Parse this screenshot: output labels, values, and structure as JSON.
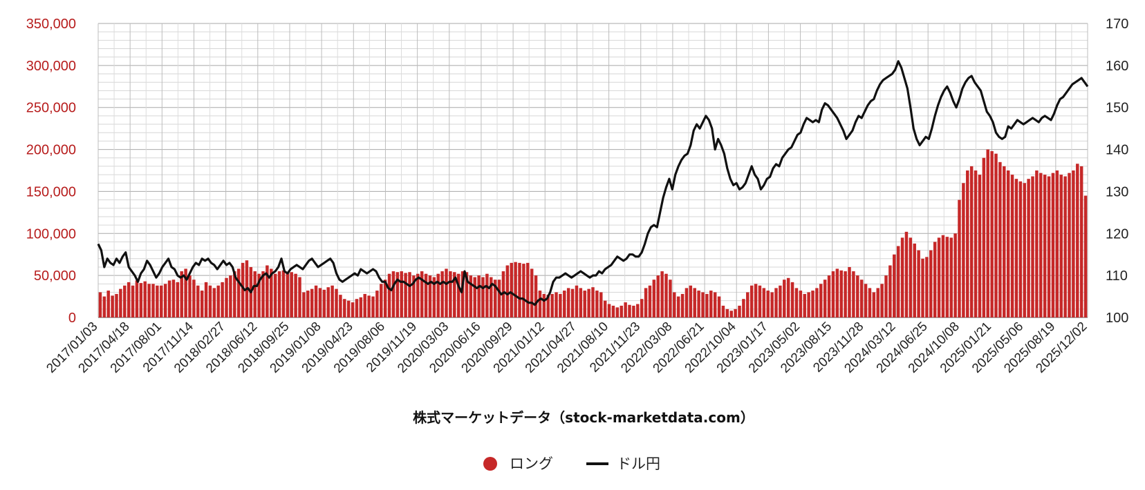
{
  "chart_data": {
    "type": "bar+line",
    "xlabel": "株式マーケットデータ（stock-marketdata.com）",
    "tick_labels": [
      "2017/01/03",
      "2017/04/18",
      "2017/08/01",
      "2017/11/14",
      "2018/02/27",
      "2018/06/12",
      "2018/09/25",
      "2019/01/08",
      "2019/04/23",
      "2019/08/06",
      "2019/11/19",
      "2020/03/03",
      "2020/06/16",
      "2020/09/29",
      "2021/01/12",
      "2021/04/27",
      "2021/08/10",
      "2021/11/23",
      "2022/03/08",
      "2022/06/21",
      "2022/10/04",
      "2023/01/17",
      "2023/05/02",
      "2023/08/15",
      "2023/11/28",
      "2024/03/12",
      "2024/06/25",
      "2024/10/08",
      "2025/01/21",
      "2025/05/06",
      "2025/08/19",
      "2025/12/02"
    ],
    "left_axis": {
      "min": 0,
      "max": 350000,
      "ticks": [
        "0",
        "50,000",
        "100,000",
        "150,000",
        "200,000",
        "250,000",
        "300,000",
        "350,000"
      ],
      "color": "#b71c1c"
    },
    "right_axis": {
      "min": 100,
      "max": 170,
      "ticks": [
        "100",
        "110",
        "120",
        "130",
        "140",
        "150",
        "160",
        "170"
      ],
      "color": "#222222"
    },
    "grid": true,
    "legend_position": "bottom-center",
    "series": [
      {
        "name": "ロング",
        "kind": "bar",
        "axis": "left",
        "color": "#c62828",
        "values": [
          30000,
          25000,
          32000,
          26000,
          28000,
          34000,
          38000,
          42000,
          38000,
          44000,
          41000,
          43000,
          40000,
          40000,
          38000,
          38000,
          40000,
          44000,
          45000,
          42000,
          55000,
          58000,
          50000,
          45000,
          38000,
          32000,
          42000,
          38000,
          35000,
          38000,
          42000,
          47000,
          50000,
          55000,
          58000,
          65000,
          68000,
          60000,
          55000,
          52000,
          55000,
          62000,
          58000,
          52000,
          55000,
          56000,
          53000,
          54000,
          52000,
          48000,
          30000,
          32000,
          34000,
          38000,
          35000,
          33000,
          36000,
          38000,
          34000,
          27000,
          22000,
          20000,
          18000,
          22000,
          24000,
          28000,
          26000,
          25000,
          32000,
          40000,
          45000,
          52000,
          55000,
          54000,
          55000,
          53000,
          54000,
          50000,
          52000,
          55000,
          52000,
          50000,
          48000,
          52000,
          55000,
          58000,
          55000,
          54000,
          52000,
          55000,
          54000,
          50000,
          48000,
          50000,
          48000,
          52000,
          48000,
          45000,
          45000,
          55000,
          62000,
          65000,
          66000,
          65000,
          64000,
          65000,
          58000,
          50000,
          32000,
          28000,
          27000,
          28000,
          30000,
          28000,
          32000,
          35000,
          34000,
          38000,
          35000,
          32000,
          34000,
          36000,
          32000,
          30000,
          20000,
          16000,
          14000,
          12000,
          14000,
          18000,
          15000,
          14000,
          16000,
          22000,
          35000,
          38000,
          45000,
          50000,
          55000,
          52000,
          45000,
          30000,
          25000,
          28000,
          35000,
          38000,
          35000,
          32000,
          30000,
          28000,
          32000,
          30000,
          25000,
          14000,
          10000,
          8000,
          10000,
          14000,
          22000,
          30000,
          38000,
          40000,
          38000,
          35000,
          32000,
          30000,
          35000,
          38000,
          45000,
          47000,
          42000,
          35000,
          32000,
          28000,
          30000,
          32000,
          35000,
          40000,
          45000,
          50000,
          55000,
          58000,
          56000,
          55000,
          60000,
          55000,
          50000,
          45000,
          40000,
          35000,
          30000,
          35000,
          40000,
          50000,
          62000,
          75000,
          85000,
          95000,
          102000,
          95000,
          88000,
          80000,
          70000,
          72000,
          80000,
          90000,
          95000,
          98000,
          96000,
          95000,
          100000,
          140000,
          160000,
          175000,
          180000,
          175000,
          170000,
          190000,
          200000,
          198000,
          195000,
          185000,
          180000,
          175000,
          170000,
          165000,
          162000,
          160000,
          165000,
          168000,
          175000,
          172000,
          170000,
          168000,
          172000,
          175000,
          170000,
          168000,
          172000,
          175000,
          183000,
          180000,
          145000
        ]
      },
      {
        "name": "ドル円",
        "kind": "line",
        "axis": "right",
        "color": "#111111",
        "values": [
          117.5,
          116.0,
          112.0,
          114.0,
          113.0,
          112.5,
          114.0,
          113.0,
          114.5,
          115.5,
          112.0,
          111.0,
          110.0,
          108.5,
          110.5,
          111.5,
          113.5,
          112.5,
          111.0,
          109.5,
          110.5,
          112.0,
          113.0,
          114.0,
          112.0,
          111.5,
          110.0,
          109.5,
          110.0,
          109.0,
          110.5,
          112.0,
          113.0,
          112.5,
          114.0,
          113.5,
          114.0,
          113.0,
          112.5,
          111.5,
          112.5,
          113.5,
          112.5,
          113.0,
          112.0,
          109.5,
          108.5,
          107.5,
          106.5,
          107.0,
          106.0,
          107.5,
          107.5,
          109.0,
          110.0,
          110.5,
          109.5,
          110.5,
          111.0,
          112.0,
          114.0,
          111.0,
          110.5,
          111.5,
          112.0,
          112.5,
          112.0,
          111.5,
          112.5,
          113.5,
          114.0,
          113.0,
          112.0,
          112.5,
          113.0,
          113.5,
          114.0,
          113.0,
          110.5,
          109.0,
          108.5,
          109.0,
          109.5,
          110.0,
          110.5,
          110.0,
          111.5,
          111.0,
          110.5,
          111.0,
          111.5,
          111.0,
          109.5,
          108.5,
          108.5,
          107.0,
          106.5,
          108.0,
          109.0,
          108.5,
          108.5,
          108.0,
          107.5,
          108.0,
          109.0,
          109.5,
          109.0,
          108.5,
          108.0,
          108.5,
          108.0,
          108.5,
          108.0,
          108.5,
          108.0,
          108.5,
          108.5,
          109.5,
          107.5,
          106.0,
          111.0,
          108.5,
          108.0,
          107.5,
          107.0,
          107.5,
          107.0,
          107.5,
          107.0,
          108.0,
          107.5,
          106.5,
          105.5,
          106.0,
          105.5,
          106.0,
          105.5,
          105.0,
          104.5,
          104.5,
          104.0,
          103.5,
          103.5,
          103.0,
          104.0,
          104.5,
          104.0,
          104.5,
          106.0,
          108.5,
          109.5,
          109.5,
          110.0,
          110.5,
          110.0,
          109.5,
          110.0,
          110.5,
          111.0,
          110.5,
          110.0,
          109.5,
          110.0,
          110.0,
          111.0,
          110.5,
          111.5,
          112.0,
          112.5,
          113.5,
          114.5,
          114.0,
          113.5,
          114.0,
          115.0,
          115.0,
          114.5,
          114.5,
          115.5,
          117.5,
          120.0,
          121.5,
          122.0,
          121.5,
          125.0,
          128.5,
          131.0,
          133.0,
          130.5,
          134.0,
          136.0,
          137.5,
          138.5,
          139.0,
          141.0,
          144.5,
          146.0,
          145.0,
          146.5,
          148.0,
          147.0,
          145.0,
          140.0,
          142.5,
          141.0,
          139.0,
          135.5,
          133.0,
          131.5,
          132.0,
          130.5,
          131.0,
          132.0,
          134.0,
          136.0,
          134.0,
          133.0,
          130.5,
          131.5,
          133.0,
          133.5,
          135.5,
          136.5,
          136.0,
          138.0,
          139.0,
          140.0,
          140.5,
          142.0,
          143.5,
          144.0,
          146.0,
          147.5,
          147.0,
          146.5,
          147.0,
          146.5,
          149.5,
          151.0,
          150.5,
          149.5,
          148.5,
          147.5,
          146.0,
          144.5,
          142.5,
          143.5,
          144.5,
          146.5,
          148.0,
          147.5,
          149.0,
          150.5,
          151.5,
          152.0,
          154.0,
          155.5,
          156.5,
          157.0,
          157.5,
          158.0,
          159.0,
          161.0,
          159.5,
          157.0,
          154.5,
          150.0,
          145.0,
          142.5,
          141.0,
          142.0,
          143.0,
          142.5,
          145.0,
          148.0,
          150.5,
          152.5,
          154.0,
          155.0,
          153.5,
          151.5,
          150.0,
          152.0,
          154.5,
          156.0,
          157.0,
          157.5,
          156.0,
          155.0,
          154.0,
          151.5,
          149.0,
          148.0,
          146.5,
          144.0,
          143.0,
          142.5,
          143.0,
          145.5,
          145.0,
          146.0,
          147.0,
          146.5,
          146.0,
          146.5,
          147.0,
          147.5,
          147.0,
          146.5,
          147.5,
          148.0,
          147.5,
          147.0,
          148.5,
          150.5,
          152.0,
          152.5,
          153.5,
          154.5,
          155.5,
          156.0,
          156.5,
          157.0,
          156.0,
          155.0
        ]
      }
    ]
  },
  "legend": {
    "items": [
      {
        "label": "ロング",
        "color": "#c62828",
        "shape": "circle"
      },
      {
        "label": "ドル円",
        "color": "#111111",
        "shape": "line"
      }
    ]
  }
}
